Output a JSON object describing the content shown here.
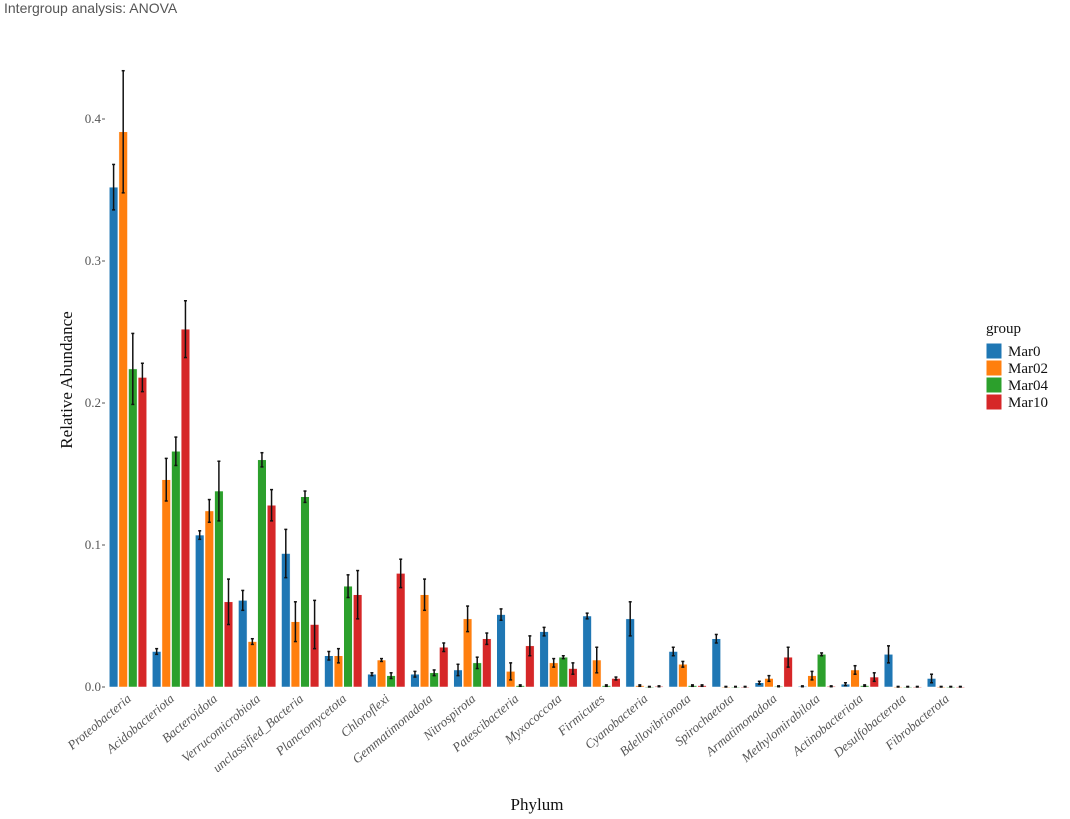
{
  "page_title": "Intergroup analysis: ANOVA",
  "chart_data": {
    "type": "bar",
    "title": "",
    "xlabel": "Phylum",
    "ylabel": "Relative Abundance",
    "ylim": [
      0,
      0.44
    ],
    "yticks": [
      "0.0",
      "0.1",
      "0.2",
      "0.3",
      "0.4"
    ],
    "grid": false,
    "legend": {
      "title": "group",
      "placement": "right"
    },
    "categories": [
      "Proteobacteria",
      "Acidobacteriota",
      "Bacteroidota",
      "Verrucomicrobiota",
      "unclassified_Bacteria",
      "Planctomycetota",
      "Chloroflexi",
      "Gemmatimonadota",
      "Nitrospirota",
      "Patescibacteria",
      "Myxococcota",
      "Firmicutes",
      "Cyanobacteria",
      "Bdellovibrionota",
      "Spirochaetota",
      "Armatimonadota",
      "Methylomirabilota",
      "Actinobacteriota",
      "Desulfobacterota",
      "Fibrobacterota"
    ],
    "series": [
      {
        "name": "Mar0",
        "color": "#1f77b4",
        "values": [
          0.352,
          0.025,
          0.107,
          0.061,
          0.094,
          0.022,
          0.009,
          0.009,
          0.012,
          0.051,
          0.039,
          0.05,
          0.048,
          0.025,
          0.034,
          0.003,
          0.0005,
          0.002,
          0.023,
          0.006
        ],
        "errors": [
          0.016,
          0.002,
          0.003,
          0.007,
          0.017,
          0.003,
          0.001,
          0.002,
          0.004,
          0.004,
          0.003,
          0.002,
          0.012,
          0.003,
          0.003,
          0.001,
          0.0003,
          0.001,
          0.006,
          0.003
        ]
      },
      {
        "name": "Mar02",
        "color": "#ff7f0e",
        "values": [
          0.391,
          0.146,
          0.124,
          0.032,
          0.046,
          0.022,
          0.019,
          0.065,
          0.048,
          0.011,
          0.017,
          0.019,
          0.001,
          0.016,
          0.0002,
          0.006,
          0.008,
          0.012,
          0.0002,
          0.0002
        ],
        "errors": [
          0.043,
          0.015,
          0.008,
          0.002,
          0.014,
          0.005,
          0.001,
          0.011,
          0.009,
          0.006,
          0.003,
          0.009,
          0.0005,
          0.002,
          0.0002,
          0.002,
          0.003,
          0.003,
          0.0002,
          0.0002
        ]
      },
      {
        "name": "Mar04",
        "color": "#2ca02c",
        "values": [
          0.224,
          0.166,
          0.138,
          0.16,
          0.134,
          0.071,
          0.008,
          0.01,
          0.017,
          0.001,
          0.021,
          0.001,
          0.0002,
          0.001,
          0.0002,
          0.0005,
          0.023,
          0.001,
          0.0002,
          0.0002
        ],
        "errors": [
          0.025,
          0.01,
          0.021,
          0.005,
          0.004,
          0.008,
          0.002,
          0.002,
          0.004,
          0.0005,
          0.001,
          0.0005,
          0.0002,
          0.0005,
          0.0002,
          0.0003,
          0.001,
          0.0005,
          0.0002,
          0.0002
        ]
      },
      {
        "name": "Mar10",
        "color": "#d62728",
        "values": [
          0.218,
          0.252,
          0.06,
          0.128,
          0.044,
          0.065,
          0.08,
          0.028,
          0.034,
          0.029,
          0.013,
          0.006,
          0.0005,
          0.001,
          0.0002,
          0.021,
          0.0005,
          0.007,
          0.0002,
          0.0002
        ],
        "errors": [
          0.01,
          0.02,
          0.016,
          0.011,
          0.017,
          0.017,
          0.01,
          0.003,
          0.004,
          0.007,
          0.004,
          0.001,
          0.0003,
          0.0005,
          0.0002,
          0.007,
          0.0003,
          0.003,
          0.0002,
          0.0002
        ]
      }
    ]
  }
}
